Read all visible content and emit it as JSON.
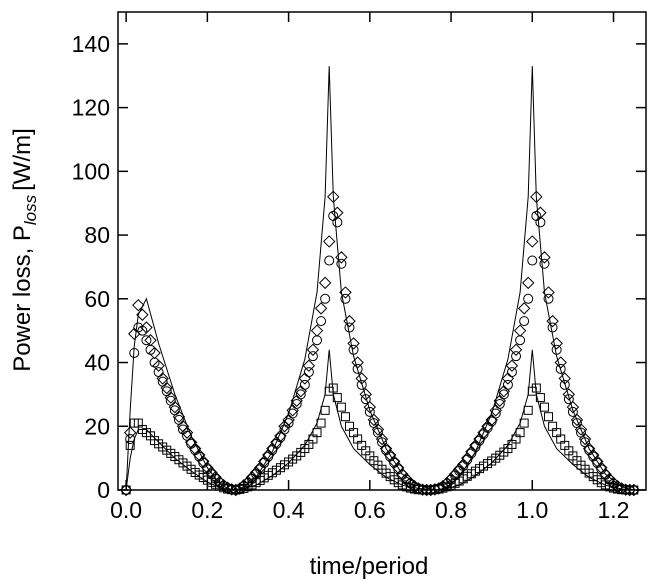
{
  "chart_data": {
    "type": "scatter",
    "xlabel": "time/period",
    "ylabel": "Power loss, P",
    "ylabel_subscript": "loss",
    "ylabel_unit": "[W/m]",
    "xlim": [
      0.0,
      1.25
    ],
    "ylim": [
      0,
      150
    ],
    "xticks": [
      "0.0",
      "0.2",
      "0.4",
      "0.6",
      "0.8",
      "1.0",
      "1.2"
    ],
    "yticks": [
      "0",
      "20",
      "40",
      "60",
      "80",
      "100",
      "120",
      "140"
    ],
    "grid": false,
    "series": [
      {
        "marker": "line",
        "x": [
          0.0,
          0.01,
          0.02,
          0.03,
          0.05,
          0.08,
          0.12,
          0.16,
          0.2,
          0.23,
          0.25,
          0.27,
          0.29,
          0.32,
          0.36,
          0.4,
          0.44,
          0.47,
          0.49,
          0.5,
          0.51,
          0.53,
          0.56,
          0.6,
          0.64,
          0.68,
          0.72,
          0.75,
          0.77,
          0.79,
          0.82,
          0.86,
          0.9,
          0.94,
          0.97,
          0.99,
          1.0,
          1.01,
          1.03,
          1.06,
          1.1,
          1.14,
          1.18,
          1.22,
          1.25
        ],
        "y": [
          0,
          25,
          45,
          55,
          60,
          46,
          30,
          17,
          7,
          2,
          0.5,
          0,
          1,
          4,
          12,
          24,
          41,
          62,
          92,
          133,
          92,
          62,
          42,
          25,
          13,
          5,
          1.5,
          0.3,
          0,
          1,
          4,
          12,
          24,
          41,
          62,
          92,
          133,
          92,
          62,
          42,
          25,
          13,
          5,
          1,
          0
        ]
      },
      {
        "marker": "line",
        "x": [
          0.0,
          0.01,
          0.02,
          0.03,
          0.05,
          0.08,
          0.12,
          0.16,
          0.2,
          0.23,
          0.25,
          0.27,
          0.29,
          0.32,
          0.36,
          0.4,
          0.44,
          0.47,
          0.49,
          0.5,
          0.51,
          0.53,
          0.56,
          0.6,
          0.64,
          0.68,
          0.72,
          0.75,
          0.77,
          0.79,
          0.82,
          0.86,
          0.9,
          0.94,
          0.97,
          0.99,
          1.0,
          1.01,
          1.03,
          1.06,
          1.1,
          1.14,
          1.18,
          1.22,
          1.25
        ],
        "y": [
          0,
          10,
          16,
          19,
          19,
          15,
          10,
          6,
          2.5,
          0.8,
          0.2,
          0,
          0.5,
          1.5,
          4.5,
          8.5,
          14,
          21,
          30,
          44,
          30,
          20,
          13,
          8,
          4,
          1.5,
          0.5,
          0.1,
          0,
          0.5,
          1.5,
          4.5,
          8.5,
          14,
          21,
          30,
          44,
          30,
          20,
          13,
          8,
          4,
          1.5,
          0.3,
          0
        ]
      },
      {
        "marker": "diamond",
        "x": [
          0.0,
          0.01,
          0.02,
          0.03,
          0.04,
          0.05,
          0.06,
          0.07,
          0.08,
          0.09,
          0.1,
          0.11,
          0.12,
          0.13,
          0.14,
          0.15,
          0.16,
          0.17,
          0.18,
          0.19,
          0.2,
          0.21,
          0.22,
          0.23,
          0.24,
          0.25,
          0.26,
          0.27,
          0.28,
          0.29,
          0.3,
          0.31,
          0.32,
          0.33,
          0.34,
          0.35,
          0.36,
          0.37,
          0.38,
          0.39,
          0.4,
          0.41,
          0.42,
          0.43,
          0.44,
          0.45,
          0.46,
          0.47,
          0.48,
          0.49,
          0.5,
          0.51,
          0.52,
          0.53,
          0.54,
          0.55,
          0.56,
          0.57,
          0.58,
          0.59,
          0.6,
          0.61,
          0.62,
          0.63,
          0.64,
          0.65,
          0.66,
          0.67,
          0.68,
          0.69,
          0.7,
          0.71,
          0.72,
          0.73,
          0.74,
          0.75,
          0.76,
          0.77,
          0.78,
          0.79,
          0.8,
          0.81,
          0.82,
          0.83,
          0.84,
          0.85,
          0.86,
          0.87,
          0.88,
          0.89,
          0.9,
          0.91,
          0.92,
          0.93,
          0.94,
          0.95,
          0.96,
          0.97,
          0.98,
          0.99,
          1.0,
          1.01,
          1.02,
          1.03,
          1.04,
          1.05,
          1.06,
          1.07,
          1.08,
          1.09,
          1.1,
          1.11,
          1.12,
          1.13,
          1.14,
          1.15,
          1.16,
          1.17,
          1.18,
          1.19,
          1.2,
          1.21,
          1.22,
          1.23,
          1.24,
          1.25
        ],
        "y": [
          0,
          18,
          49,
          58,
          55,
          51,
          47,
          43,
          39,
          35,
          32,
          29,
          26,
          23,
          20,
          18,
          15,
          13,
          11,
          9,
          7,
          5.5,
          4,
          2.5,
          1.5,
          0.7,
          0.2,
          0,
          0.5,
          1.5,
          2.5,
          4,
          5.5,
          7,
          9,
          11,
          13,
          15,
          17,
          20,
          22,
          25,
          28,
          31,
          35,
          39,
          44,
          50,
          57,
          65,
          78,
          92,
          87,
          73,
          62,
          53,
          46,
          40,
          35,
          30,
          26,
          22,
          19,
          16,
          13,
          11,
          9,
          7,
          5,
          3.5,
          2.2,
          1.2,
          0.5,
          0.1,
          0,
          0,
          0.2,
          0.5,
          1.2,
          2.2,
          3.5,
          5,
          6.5,
          8,
          10,
          12,
          14,
          16,
          18,
          20,
          22,
          25,
          28,
          31,
          35,
          39,
          44,
          50,
          57,
          65,
          78,
          92,
          87,
          73,
          62,
          53,
          46,
          40,
          35,
          30,
          26,
          22,
          19,
          16,
          13,
          11,
          9,
          7,
          5,
          3.5,
          2.2,
          1.2,
          0.5,
          0.1,
          0,
          0
        ],
        "note_removed": null
      },
      {
        "marker": "circle",
        "x": [
          0.0,
          0.01,
          0.02,
          0.03,
          0.04,
          0.05,
          0.06,
          0.07,
          0.08,
          0.09,
          0.1,
          0.11,
          0.12,
          0.13,
          0.14,
          0.15,
          0.16,
          0.17,
          0.18,
          0.19,
          0.2,
          0.21,
          0.22,
          0.23,
          0.24,
          0.25,
          0.26,
          0.27,
          0.28,
          0.29,
          0.3,
          0.31,
          0.32,
          0.33,
          0.34,
          0.35,
          0.36,
          0.37,
          0.38,
          0.39,
          0.4,
          0.41,
          0.42,
          0.43,
          0.44,
          0.45,
          0.46,
          0.47,
          0.48,
          0.49,
          0.5,
          0.51,
          0.52,
          0.53,
          0.54,
          0.55,
          0.56,
          0.57,
          0.58,
          0.59,
          0.6,
          0.61,
          0.62,
          0.63,
          0.64,
          0.65,
          0.66,
          0.67,
          0.68,
          0.69,
          0.7,
          0.71,
          0.72,
          0.73,
          0.74,
          0.75,
          0.76,
          0.77,
          0.78,
          0.79,
          0.8,
          0.81,
          0.82,
          0.83,
          0.84,
          0.85,
          0.86,
          0.87,
          0.88,
          0.89,
          0.9,
          0.91,
          0.92,
          0.93,
          0.94,
          0.95,
          0.96,
          0.97,
          0.98,
          0.99,
          1.0,
          1.01,
          1.02,
          1.03,
          1.04,
          1.05,
          1.06,
          1.07,
          1.08,
          1.09,
          1.1,
          1.11,
          1.12,
          1.13,
          1.14,
          1.15,
          1.16,
          1.17,
          1.18,
          1.19,
          1.2,
          1.21,
          1.22,
          1.23,
          1.24,
          1.25
        ],
        "y": [
          0,
          16,
          43,
          51,
          50,
          47,
          44,
          40,
          37,
          34,
          31,
          28,
          25,
          22,
          19,
          17,
          14.5,
          12.5,
          10.5,
          8.5,
          6.5,
          5,
          3.5,
          2.3,
          1.3,
          0.6,
          0.2,
          0,
          0.4,
          1.2,
          2.2,
          3.5,
          5,
          6.5,
          8.5,
          10.5,
          12.5,
          14.5,
          16.5,
          19,
          21,
          24,
          27,
          30,
          33,
          37,
          42,
          47,
          53,
          60,
          72,
          86,
          84,
          71,
          60,
          51,
          44,
          38,
          33,
          28.5,
          24.5,
          21,
          18,
          15,
          12.5,
          10.5,
          8.5,
          6.5,
          4.7,
          3.2,
          2,
          1,
          0.4,
          0.1,
          0,
          0,
          0.2,
          0.5,
          1.1,
          2,
          3.2,
          4.6,
          6,
          7.5,
          9.5,
          11.5,
          13.5,
          15.5,
          17.5,
          19.5,
          21.5,
          24,
          27,
          30,
          33,
          37,
          42,
          47,
          53,
          60,
          72,
          86,
          84,
          71,
          60,
          51,
          44,
          38,
          33,
          28.5,
          24.5,
          21,
          18,
          15,
          12.5,
          10.5,
          8.5,
          6.5,
          4.7,
          3.2,
          2,
          1,
          0.4,
          0.1,
          0,
          0
        ]
      },
      {
        "marker": "square",
        "x": [
          0.0,
          0.01,
          0.02,
          0.03,
          0.04,
          0.05,
          0.06,
          0.07,
          0.08,
          0.09,
          0.1,
          0.11,
          0.12,
          0.13,
          0.14,
          0.15,
          0.16,
          0.17,
          0.18,
          0.19,
          0.2,
          0.21,
          0.22,
          0.23,
          0.24,
          0.25,
          0.26,
          0.27,
          0.28,
          0.29,
          0.3,
          0.31,
          0.32,
          0.33,
          0.34,
          0.35,
          0.36,
          0.37,
          0.38,
          0.39,
          0.4,
          0.41,
          0.42,
          0.43,
          0.44,
          0.45,
          0.46,
          0.47,
          0.48,
          0.49,
          0.5,
          0.51,
          0.52,
          0.53,
          0.54,
          0.55,
          0.56,
          0.57,
          0.58,
          0.59,
          0.6,
          0.61,
          0.62,
          0.63,
          0.64,
          0.65,
          0.66,
          0.67,
          0.68,
          0.69,
          0.7,
          0.71,
          0.72,
          0.73,
          0.74,
          0.75,
          0.76,
          0.77,
          0.78,
          0.79,
          0.8,
          0.81,
          0.82,
          0.83,
          0.84,
          0.85,
          0.86,
          0.87,
          0.88,
          0.89,
          0.9,
          0.91,
          0.92,
          0.93,
          0.94,
          0.95,
          0.96,
          0.97,
          0.98,
          0.99,
          1.0,
          1.01,
          1.02,
          1.03,
          1.04,
          1.05,
          1.06,
          1.07,
          1.08,
          1.09,
          1.1,
          1.11,
          1.12,
          1.13,
          1.14,
          1.15,
          1.16,
          1.17,
          1.18,
          1.19,
          1.2,
          1.21,
          1.22,
          1.23,
          1.24,
          1.25
        ],
        "y": [
          0,
          14,
          21,
          21,
          19,
          18,
          17,
          15.5,
          14.5,
          13.5,
          12.5,
          11.5,
          10.5,
          9.5,
          8.5,
          7.5,
          6.5,
          5.5,
          4.7,
          3.9,
          3.1,
          2.4,
          1.8,
          1.2,
          0.7,
          0.3,
          0.1,
          0,
          0.2,
          0.5,
          1,
          1.6,
          2.3,
          3,
          3.8,
          4.6,
          5.4,
          6.2,
          7,
          7.9,
          8.8,
          9.7,
          10.7,
          11.8,
          13,
          14.3,
          16,
          18,
          21,
          25,
          31,
          32,
          29,
          26,
          23,
          20,
          18,
          16,
          14,
          12.3,
          10.7,
          9.2,
          7.8,
          6.5,
          5.3,
          4.2,
          3.2,
          2.3,
          1.6,
          1,
          0.6,
          0.3,
          0.1,
          0,
          0,
          0,
          0.1,
          0.3,
          0.6,
          1,
          1.5,
          2.1,
          2.8,
          3.5,
          4.3,
          5.1,
          5.9,
          6.7,
          7.5,
          8.3,
          9.1,
          10,
          10.9,
          11.9,
          13,
          14.3,
          16,
          18,
          21,
          25,
          31,
          32,
          29,
          26,
          23,
          20,
          18,
          16,
          14,
          12.3,
          10.7,
          9.2,
          7.8,
          6.5,
          5.3,
          4.2,
          3.2,
          2.3,
          1.6,
          1,
          0.6,
          0.3,
          0.1,
          0,
          0,
          0
        ]
      }
    ]
  }
}
